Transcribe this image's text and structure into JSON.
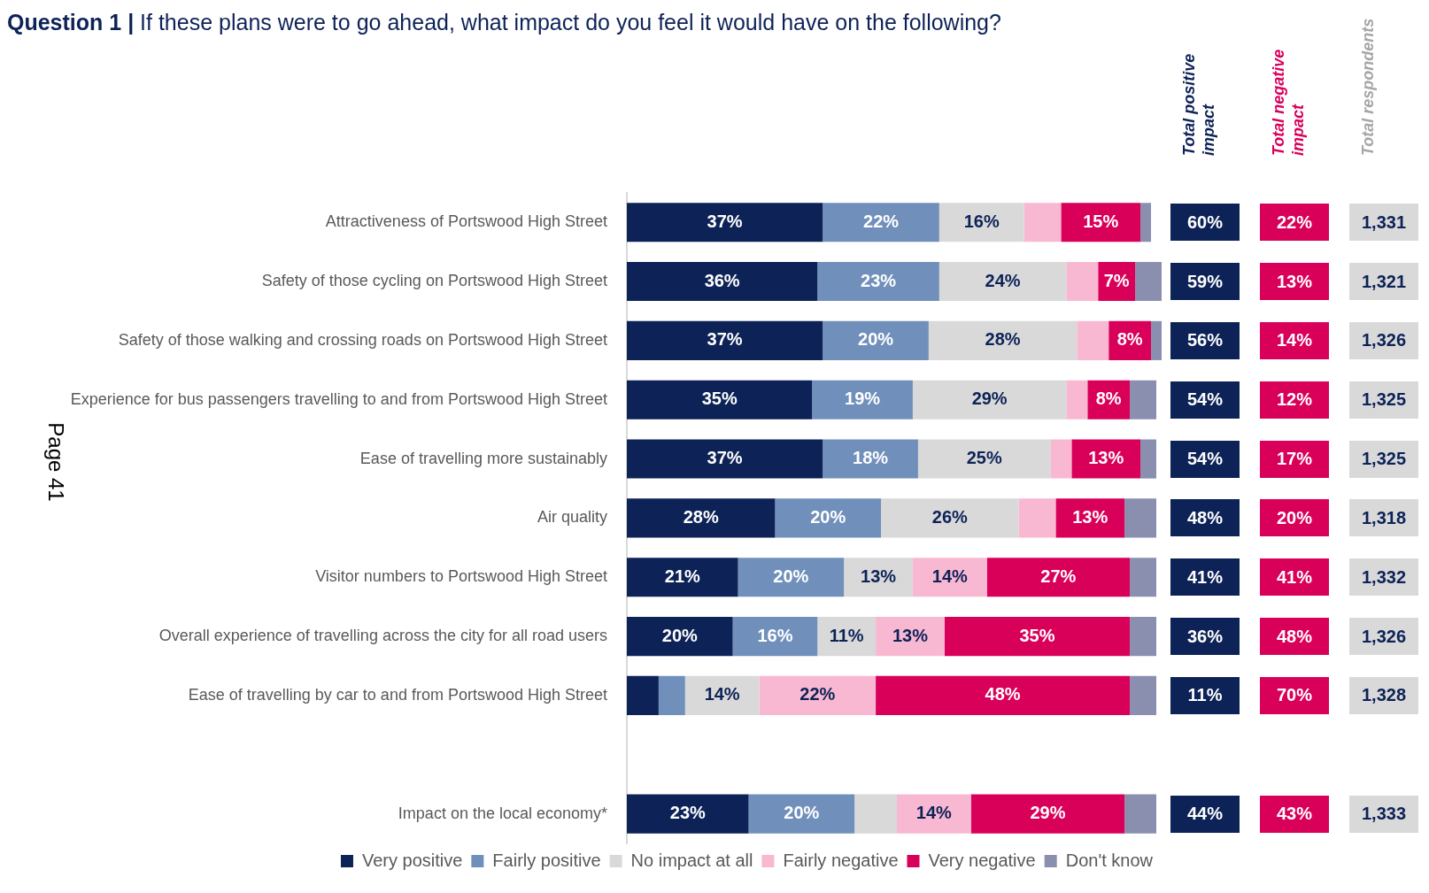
{
  "chart_data": [
    {
      "type": "bar",
      "orientation": "horizontal",
      "stacked": true,
      "title": "Question 1 | If these plans were to go ahead, what impact do you feel it would have on the following?",
      "categories": [
        "Attractiveness of Portswood High Street",
        "Safety of those cycling on Portswood High Street",
        "Safety of those walking and crossing roads on Portswood High Street",
        "Experience for bus passengers travelling to and from Portswood High Street",
        "Ease of travelling more sustainably",
        "Air quality",
        "Visitor numbers to Portswood High Street",
        "Overall experience of travelling across the city for all road users",
        "Ease of travelling by car to and from Portswood High Street",
        null,
        "Impact on the local economy*"
      ],
      "xlim": [
        0,
        101
      ],
      "legend": "bottom",
      "annotations": [
        "Page 41"
      ],
      "series": [
        {
          "name": "Very positive",
          "color": "#0d2257",
          "values": [
            37,
            36,
            37,
            35,
            37,
            28,
            21,
            20,
            6,
            null,
            23
          ],
          "value_labels": [
            "37%",
            "36%",
            "37%",
            "35%",
            "37%",
            "28%",
            "21%",
            "20%",
            null,
            null,
            "23%"
          ]
        },
        {
          "name": "Fairly positive",
          "color": "#7090bb",
          "values": [
            22,
            23,
            20,
            19,
            18,
            20,
            20,
            16,
            5,
            null,
            20
          ],
          "value_labels": [
            "22%",
            "23%",
            "20%",
            "19%",
            "18%",
            "20%",
            "20%",
            "16%",
            null,
            null,
            "20%"
          ]
        },
        {
          "name": "No impact at all",
          "color": "#d9d9d9",
          "values": [
            16,
            24,
            28,
            29,
            25,
            26,
            13,
            11,
            14,
            null,
            8
          ],
          "value_labels": [
            "16%",
            "24%",
            "28%",
            "29%",
            "25%",
            "26%",
            "13%",
            "11%",
            "14%",
            null,
            null
          ]
        },
        {
          "name": "Fairly negative",
          "color": "#f9b8d2",
          "values": [
            7,
            6,
            6,
            4,
            4,
            7,
            14,
            13,
            22,
            null,
            14
          ],
          "value_labels": [
            null,
            null,
            null,
            null,
            null,
            null,
            "14%",
            "13%",
            "22%",
            null,
            "14%"
          ]
        },
        {
          "name": "Very negative",
          "color": "#d9005a",
          "values": [
            15,
            7,
            8,
            8,
            13,
            13,
            27,
            35,
            48,
            null,
            29
          ],
          "value_labels": [
            "15%",
            "7%",
            "8%",
            "8%",
            "13%",
            "13%",
            "27%",
            "35%",
            "48%",
            null,
            "29%"
          ]
        },
        {
          "name": "Don't know",
          "color": "#8a8fb0",
          "values": [
            2,
            5,
            2,
            5,
            3,
            6,
            5,
            5,
            5,
            null,
            6
          ]
        }
      ]
    },
    {
      "type": "other",
      "title": "Total positive impact",
      "color": "#0d2257",
      "annotations": [
        "60%",
        "59%",
        "56%",
        "54%",
        "54%",
        "48%",
        "41%",
        "36%",
        "11%",
        "44%"
      ]
    },
    {
      "type": "other",
      "title": "Total negative impact",
      "color": "#d9005a",
      "annotations": [
        "22%",
        "13%",
        "14%",
        "12%",
        "17%",
        "20%",
        "41%",
        "48%",
        "70%",
        "43%"
      ]
    },
    {
      "type": "other",
      "title": "Total respondents",
      "color": "#d9d9d9",
      "annotations": [
        "1,331",
        "1,321",
        "1,326",
        "1,325",
        "1,325",
        "1,318",
        "1,332",
        "1,326",
        "1,328",
        "1,333"
      ]
    }
  ]
}
